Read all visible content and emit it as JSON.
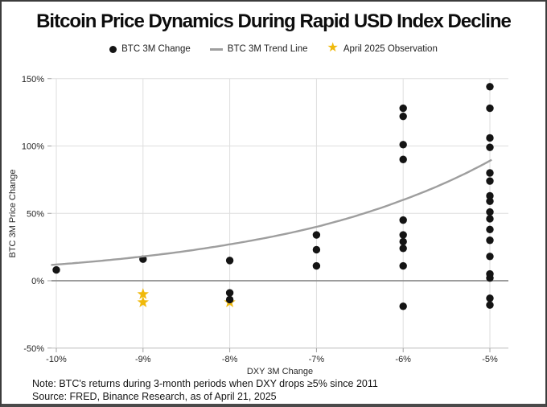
{
  "title": "Bitcoin Price Dynamics During Rapid USD Index Decline",
  "legend": [
    {
      "label": "BTC 3M Change",
      "marker": "dot-icon",
      "color": "#141414"
    },
    {
      "label": "BTC 3M Trend Line",
      "marker": "line-icon",
      "color": "#9e9e9e"
    },
    {
      "label": "April 2025 Observation",
      "marker": "star-icon",
      "color": "#F0B90B"
    }
  ],
  "notes": {
    "line1": "Note: BTC's returns during 3-month periods when DXY drops ≥5% since 2011",
    "line2": "Source: FRED, Binance Research, as of April 21, 2025"
  },
  "colors": {
    "dot": "#141414",
    "trend": "#9e9e9e",
    "star": "#F0B90B",
    "grid": "#dedede",
    "zero_line": "#8f8f8f",
    "axis_line": "#c9c9c9",
    "tick": "#a0a0a0",
    "text": "#262626"
  },
  "chart_data": {
    "type": "scatter",
    "title": "Bitcoin Price Dynamics During Rapid USD Index Decline",
    "xlabel": "DXY 3M Change",
    "ylabel": "BTC 3M Price Change",
    "xlim": [
      -10.06,
      -4.78
    ],
    "ylim": [
      -50,
      150
    ],
    "grid": true,
    "legend_position": "top",
    "x_ticks": [
      -10,
      -9,
      -8,
      -7,
      -6,
      -5
    ],
    "x_tick_labels": [
      "-10%",
      "-9%",
      "-8%",
      "-7%",
      "-6%",
      "-5%"
    ],
    "y_ticks": [
      150,
      100,
      50,
      0,
      -50
    ],
    "y_tick_labels": [
      "150%",
      "100%",
      "50%",
      "0%",
      "-50%"
    ],
    "series": [
      {
        "name": "BTC 3M Change",
        "type": "scatter",
        "color": "#141414",
        "points": [
          [
            -10,
            8
          ],
          [
            -9,
            16
          ],
          [
            -8,
            15
          ],
          [
            -8,
            -9
          ],
          [
            -8,
            -14
          ],
          [
            -7,
            34
          ],
          [
            -7,
            23
          ],
          [
            -7,
            11
          ],
          [
            -6,
            128
          ],
          [
            -6,
            122
          ],
          [
            -6,
            101
          ],
          [
            -6,
            90
          ],
          [
            -6,
            45
          ],
          [
            -6,
            34
          ],
          [
            -6,
            29
          ],
          [
            -6,
            24
          ],
          [
            -6,
            11
          ],
          [
            -6,
            -19
          ],
          [
            -5,
            144
          ],
          [
            -5,
            128
          ],
          [
            -5,
            106
          ],
          [
            -5,
            99
          ],
          [
            -5,
            80
          ],
          [
            -5,
            74
          ],
          [
            -5,
            63
          ],
          [
            -5,
            59
          ],
          [
            -5,
            51
          ],
          [
            -5,
            46
          ],
          [
            -5,
            38
          ],
          [
            -5,
            30
          ],
          [
            -5,
            18
          ],
          [
            -5,
            5
          ],
          [
            -5,
            2
          ],
          [
            -5,
            -13
          ],
          [
            -5,
            -18
          ]
        ]
      },
      {
        "name": "BTC 3M Trend Line",
        "type": "line",
        "color": "#9e9e9e",
        "points": [
          [
            -10,
            12
          ],
          [
            -9,
            18
          ],
          [
            -8,
            27
          ],
          [
            -7,
            40
          ],
          [
            -6,
            60
          ],
          [
            -5,
            89
          ]
        ]
      },
      {
        "name": "April 2025 Observation",
        "type": "star",
        "color": "#F0B90B",
        "points": [
          [
            -9,
            -10
          ],
          [
            -9,
            -16
          ],
          [
            -8,
            -16
          ]
        ]
      }
    ]
  }
}
